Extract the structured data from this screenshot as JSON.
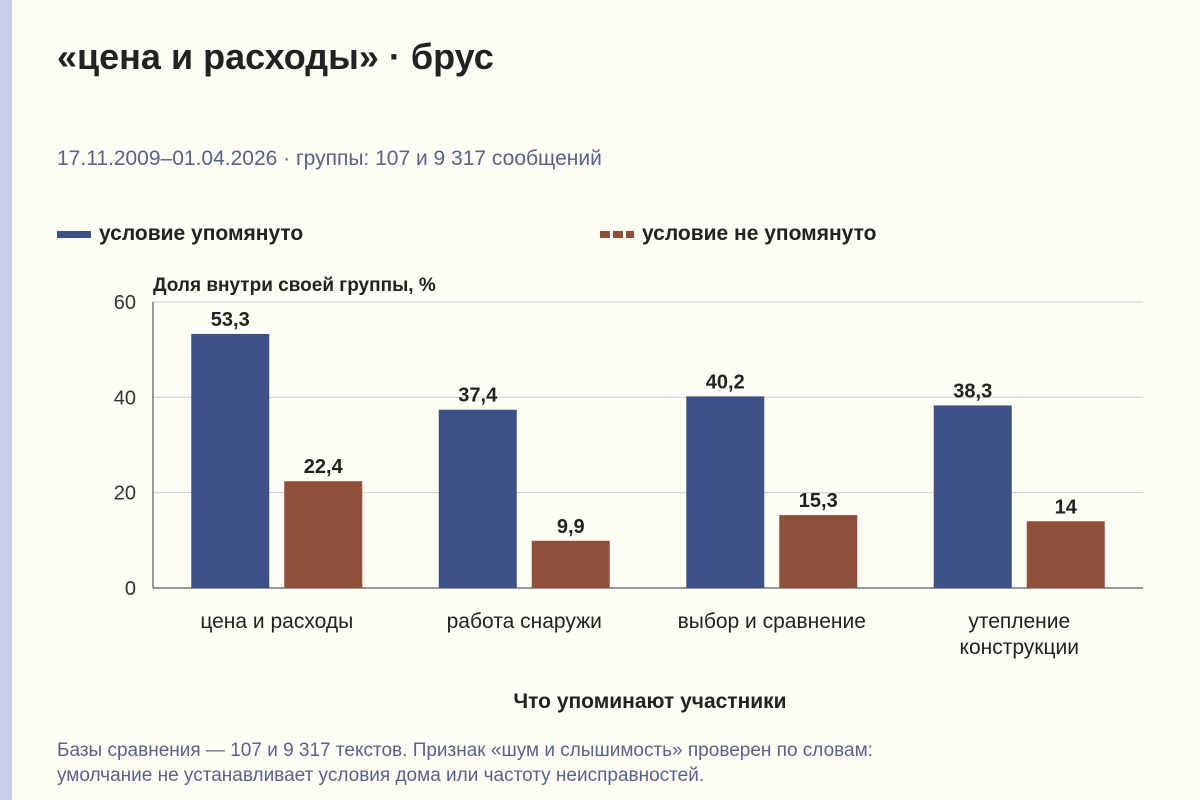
{
  "title": "«цена и расходы» · брус",
  "subtitle": "17.11.2009–01.04.2026 · группы: 107 и 9 317 сообщений",
  "note_line1": "Базы сравнения — 107 и 9 317 текстов. Признак «шум и слышимость» проверен по словам:",
  "note_line2": "умолчание не устанавливает условия дома или частоту неисправностей.",
  "colors": {
    "mentioned": "#3d5186",
    "not_mentioned": "#8e5038"
  },
  "chart_data": {
    "type": "bar",
    "title": "«цена и расходы» · брус",
    "subtitle": "17.11.2009–01.04.2026 · группы: 107 и 9 317 сообщений",
    "xlabel": "Что упоминают участники",
    "ylabel": "Доля внутри своей группы, %",
    "ylim": [
      0,
      60
    ],
    "yticks": [
      "0",
      "20",
      "40",
      "60"
    ],
    "yticks_values": [
      0,
      20,
      40,
      60
    ],
    "grid": true,
    "legend_position": "top",
    "categories": [
      [
        "цена и расходы"
      ],
      [
        "работа снаружи"
      ],
      [
        "выбор и сравнение"
      ],
      [
        "утепление",
        "конструкции"
      ]
    ],
    "series": [
      {
        "name": "условие упомянуто",
        "values": [
          53.3,
          37.4,
          40.2,
          38.3
        ],
        "labels": [
          "53,3",
          "37,4",
          "40,2",
          "38,3"
        ]
      },
      {
        "name": "условие не упомянуто",
        "values": [
          22.4,
          9.9,
          15.3,
          14
        ],
        "labels": [
          "22,4",
          "9,9",
          "15,3",
          "14"
        ]
      }
    ]
  }
}
